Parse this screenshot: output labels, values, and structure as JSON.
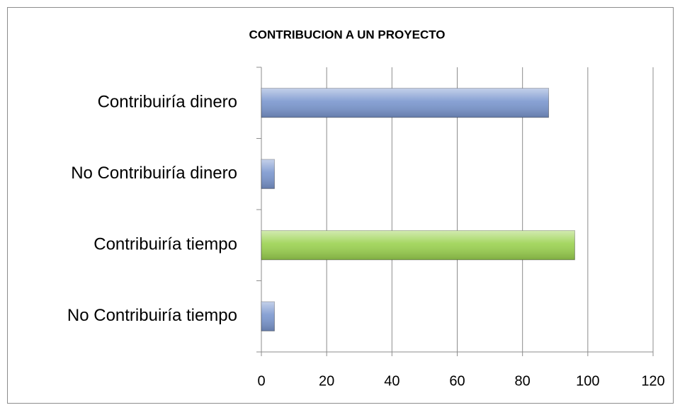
{
  "chart_data": {
    "type": "hbar",
    "title": "CONTRIBUCION A UN PROYECTO",
    "categories": [
      "Contribuiría dinero",
      "No Contribuiría dinero",
      "Contribuiría tiempo",
      "No Contribuiría tiempo"
    ],
    "values": [
      88,
      4,
      96,
      4
    ],
    "colors": [
      "#7b97cf",
      "#7b97cf",
      "#9bd250",
      "#7b97cf"
    ],
    "xlim": [
      0,
      120
    ],
    "xticks": [
      0,
      20,
      40,
      60,
      80,
      100,
      120
    ],
    "grid": true
  }
}
